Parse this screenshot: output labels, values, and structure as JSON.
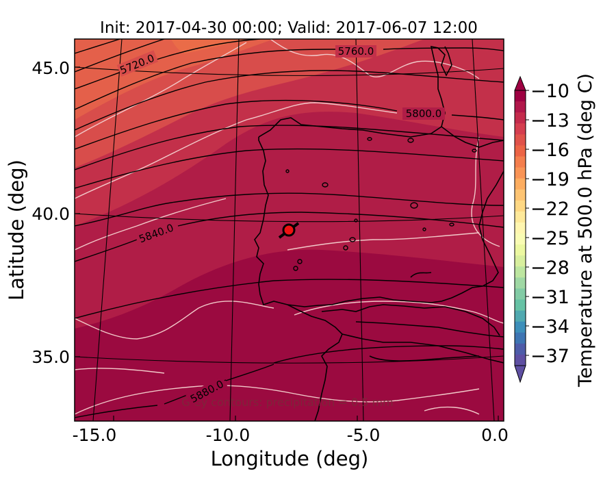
{
  "title": "Init: 2017-04-30 00:00; Valid: 2017-06-07 12:00",
  "map": {
    "xlabel": "Longitude (deg)",
    "ylabel": "Latitude (deg)",
    "x_ticks": [
      "-15.0",
      "-10.0",
      "-5.0",
      "0.0"
    ],
    "y_ticks": [
      "45.0",
      "40.0",
      "35.0"
    ],
    "contour_labels": [
      "5720.0",
      "5760.0",
      "5800.0",
      "5840.0",
      "5880.0"
    ],
    "footnote": "Grey contours: precipitation = 0.5 mm",
    "marker": {
      "lon": -7.8,
      "lat": 39.4,
      "color": "#ee1111"
    }
  },
  "colorbar": {
    "label": "Temperature at 500.0 hPa (deg C)",
    "ticks": [
      "−10",
      "−13",
      "−16",
      "−19",
      "−22",
      "−25",
      "−28",
      "−31",
      "−34",
      "−37"
    ],
    "colors_top_to_bottom": [
      "#9e0142",
      "#b1174a",
      "#c42b4c",
      "#d53e4f",
      "#e0524a",
      "#ec6445",
      "#f47e4d",
      "#f99456",
      "#fdad60",
      "#fdc473",
      "#fed884",
      "#fee99a",
      "#fff6b0",
      "#f9fcb4",
      "#ecf8a1",
      "#d8ef9e",
      "#bde6a0",
      "#9fd8a4",
      "#82cba5",
      "#66c2a5",
      "#50a9b0",
      "#3d8fba",
      "#3e75b3",
      "#4e5ca9",
      "#5e4fa2"
    ],
    "extend_top_color": "#9e0142",
    "extend_bottom_color": "#5e4fa2"
  },
  "colors": {
    "field_dark": "#9b0a40",
    "field_mid": "#b01d47",
    "field_warm": "#c3304a",
    "field_hot": "#d84d4b",
    "field_hotter": "#e4604a"
  }
}
